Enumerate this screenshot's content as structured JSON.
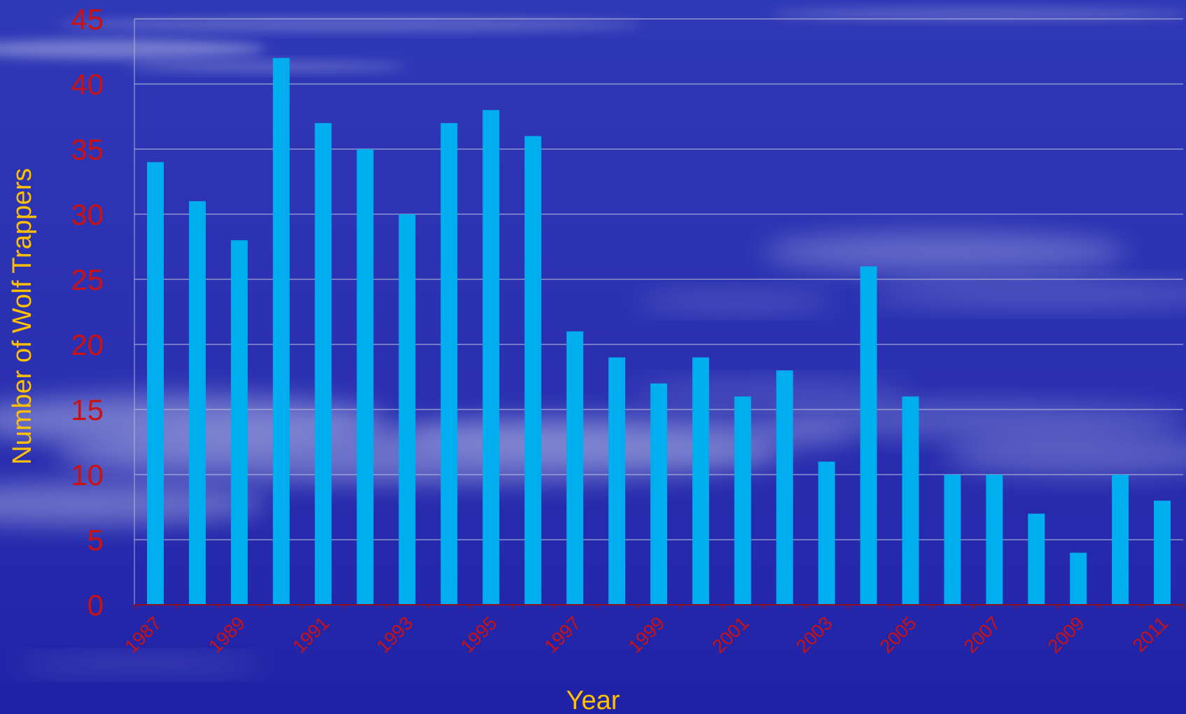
{
  "chart_data": {
    "type": "bar",
    "title": "",
    "xlabel": "Year",
    "ylabel": "Number  of Wolf Trappers",
    "ylim": [
      0,
      45
    ],
    "yticks": [
      0,
      5,
      10,
      15,
      20,
      25,
      30,
      35,
      40,
      45
    ],
    "grid": true,
    "legend": "none",
    "categories": [
      "1987",
      "1988",
      "1989",
      "1990",
      "1991",
      "1992",
      "1993",
      "1994",
      "1995",
      "1996",
      "1997",
      "1998",
      "1999",
      "2000",
      "2001",
      "2002",
      "2003",
      "2004",
      "2005",
      "2006",
      "2007",
      "2008",
      "2009",
      "2010",
      "2011"
    ],
    "x_tick_labels": [
      "1987",
      "",
      "1989",
      "",
      "1991",
      "",
      "1993",
      "",
      "1995",
      "",
      "1997",
      "",
      "1999",
      "",
      "2001",
      "",
      "2003",
      "",
      "2005",
      "",
      "2007",
      "",
      "2009",
      "",
      "2011"
    ],
    "series": [
      {
        "values": [
          34,
          31,
          28,
          42,
          37,
          35,
          30,
          37,
          38,
          36,
          21,
          19,
          17,
          19,
          16,
          18,
          11,
          26,
          16,
          10,
          10,
          7,
          4,
          10,
          8
        ]
      }
    ],
    "colors": {
      "bar": "#00aeef",
      "tick_label": "#cc1111",
      "axis_title": "#ffc000",
      "grid": "#b8bcd8",
      "axis_line": "#8c1020",
      "background_top": "#2e36b5",
      "background_bottom": "#2224a8",
      "cloud": "#c9cfee"
    }
  }
}
